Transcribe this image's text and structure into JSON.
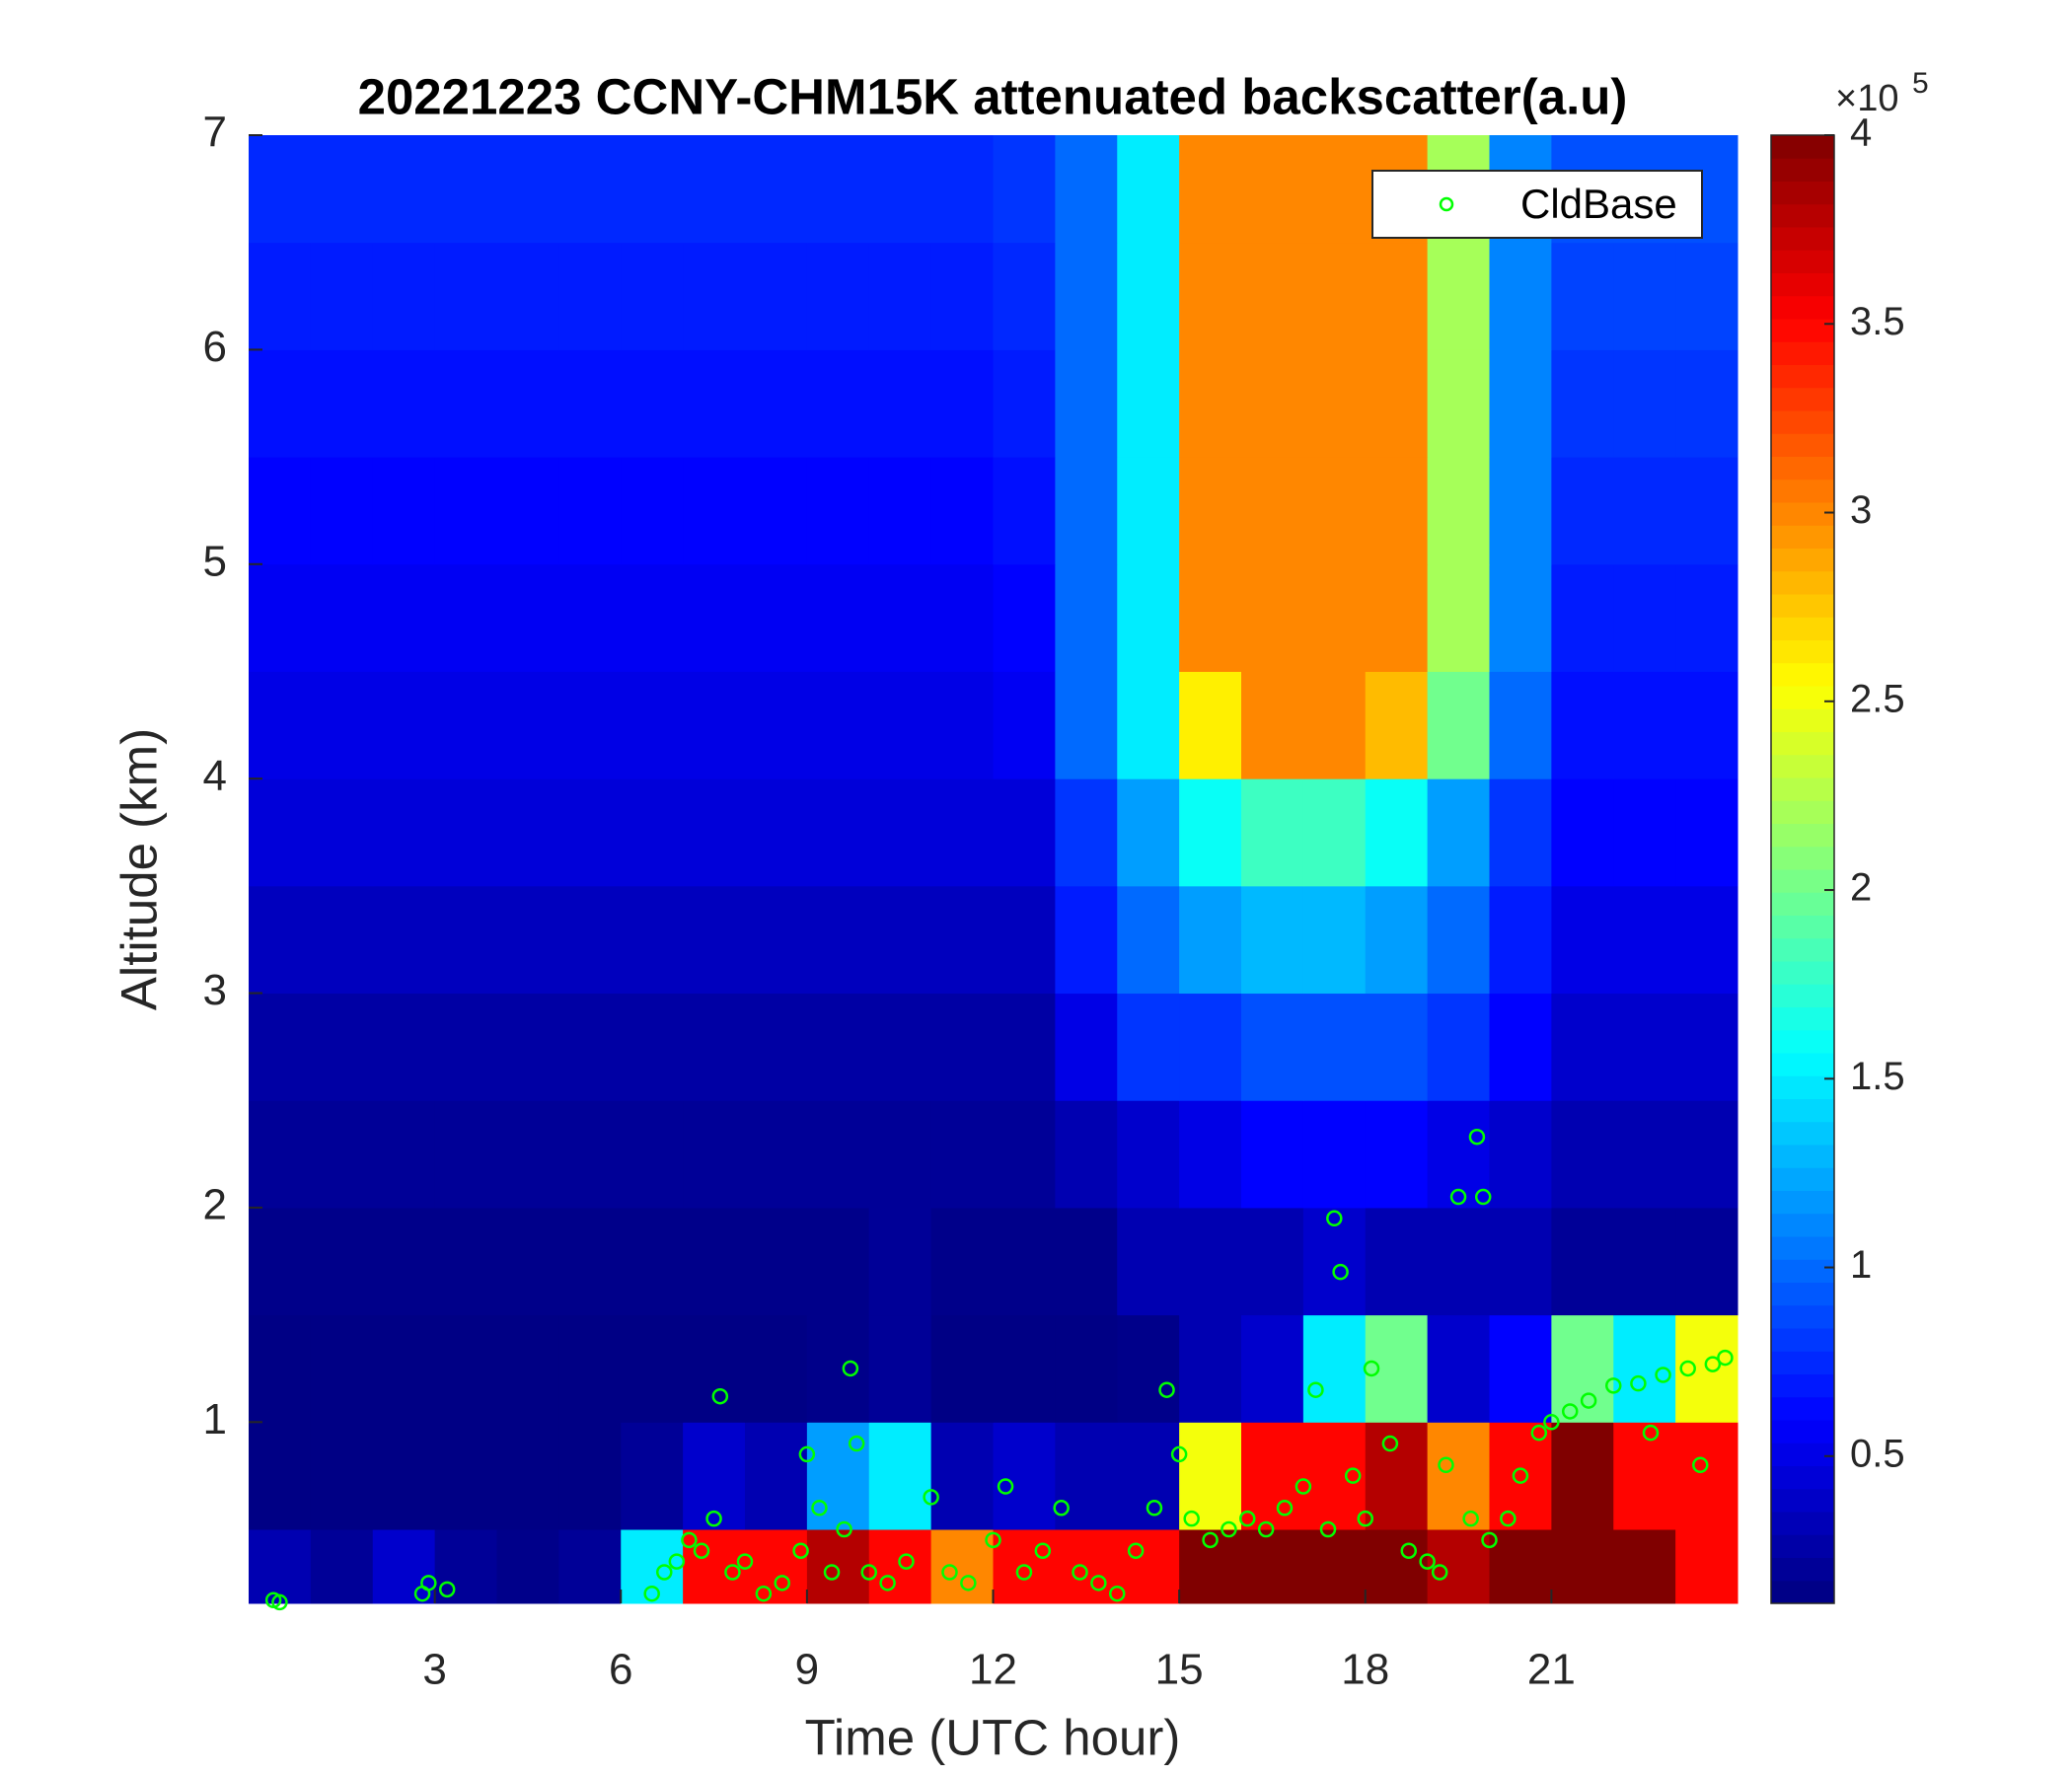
{
  "chart_data": {
    "type": "heatmap",
    "title": "20221223 CCNY-CHM15K attenuated backscatter(a.u)",
    "x_label": "Time (UTC hour)",
    "y_label": "Altitude (km)",
    "xlim": [
      0,
      24
    ],
    "xticks": [
      3,
      6,
      9,
      12,
      15,
      18,
      21
    ],
    "ylim": [
      0.155,
      7
    ],
    "yticks": [
      1,
      2,
      3,
      4,
      5,
      6,
      7
    ],
    "x_edges": [
      0,
      1,
      2,
      3,
      4,
      5,
      6,
      7,
      8,
      9,
      10,
      11,
      12,
      13,
      14,
      15,
      16,
      17,
      18,
      19,
      20,
      21,
      22,
      23,
      24
    ],
    "y_edges": [
      0.155,
      0.5,
      1,
      1.5,
      2,
      2.5,
      3,
      3.5,
      4,
      4.5,
      5,
      5.5,
      6,
      6.5,
      7
    ],
    "z": [
      [
        0.3,
        0.2,
        0.4,
        0.2,
        0.15,
        0.2,
        1.5,
        3.5,
        3.5,
        3.8,
        3.5,
        3,
        3.5,
        3.5,
        3.5,
        4,
        4,
        4,
        4,
        3.8,
        4,
        4,
        4,
        3.5
      ],
      [
        0.13,
        0.13,
        0.13,
        0.13,
        0.13,
        0.13,
        0.2,
        0.4,
        0.3,
        1.2,
        1.5,
        0.3,
        0.4,
        0.3,
        0.3,
        2.5,
        3.5,
        3.5,
        3.8,
        3,
        3.5,
        4,
        3.5,
        3.5
      ],
      [
        0.13,
        0.13,
        0.13,
        0.13,
        0.13,
        0.13,
        0.13,
        0.13,
        0.13,
        0.15,
        0.2,
        0.13,
        0.13,
        0.13,
        0.15,
        0.3,
        0.4,
        1.5,
        2,
        0.4,
        0.6,
        2,
        1.5,
        2.5
      ],
      [
        0.15,
        0.15,
        0.15,
        0.15,
        0.15,
        0.15,
        0.15,
        0.15,
        0.15,
        0.15,
        0.2,
        0.15,
        0.15,
        0.15,
        0.3,
        0.3,
        0.3,
        0.4,
        0.3,
        0.3,
        0.3,
        0.2,
        0.2,
        0.2
      ],
      [
        0.2,
        0.2,
        0.2,
        0.2,
        0.2,
        0.2,
        0.2,
        0.2,
        0.2,
        0.2,
        0.2,
        0.2,
        0.2,
        0.3,
        0.4,
        0.5,
        0.6,
        0.6,
        0.6,
        0.5,
        0.4,
        0.3,
        0.3,
        0.3
      ],
      [
        0.25,
        0.25,
        0.25,
        0.25,
        0.25,
        0.25,
        0.25,
        0.25,
        0.25,
        0.25,
        0.25,
        0.25,
        0.25,
        0.5,
        0.8,
        0.8,
        0.9,
        0.9,
        0.9,
        0.8,
        0.6,
        0.4,
        0.4,
        0.4
      ],
      [
        0.35,
        0.35,
        0.35,
        0.35,
        0.35,
        0.35,
        0.35,
        0.35,
        0.35,
        0.35,
        0.35,
        0.35,
        0.35,
        0.7,
        1.0,
        1.2,
        1.3,
        1.3,
        1.2,
        1.0,
        0.7,
        0.5,
        0.5,
        0.5
      ],
      [
        0.45,
        0.45,
        0.45,
        0.45,
        0.45,
        0.45,
        0.45,
        0.45,
        0.45,
        0.45,
        0.45,
        0.45,
        0.45,
        0.8,
        1.2,
        1.6,
        1.8,
        1.8,
        1.6,
        1.2,
        0.8,
        0.6,
        0.6,
        0.6
      ],
      [
        0.5,
        0.5,
        0.5,
        0.5,
        0.5,
        0.5,
        0.5,
        0.5,
        0.5,
        0.5,
        0.5,
        0.5,
        0.55,
        1.0,
        1.5,
        2.6,
        3.0,
        3.0,
        2.8,
        2.0,
        1.0,
        0.65,
        0.65,
        0.65
      ],
      [
        0.55,
        0.55,
        0.55,
        0.55,
        0.55,
        0.55,
        0.55,
        0.55,
        0.55,
        0.55,
        0.55,
        0.55,
        0.6,
        1.0,
        1.5,
        3.0,
        3.0,
        3.0,
        3.0,
        2.2,
        1.1,
        0.7,
        0.7,
        0.7
      ],
      [
        0.6,
        0.6,
        0.6,
        0.6,
        0.6,
        0.6,
        0.6,
        0.6,
        0.6,
        0.6,
        0.6,
        0.6,
        0.65,
        1.0,
        1.5,
        3.0,
        3.0,
        3.0,
        3.0,
        2.2,
        1.1,
        0.75,
        0.75,
        0.75
      ],
      [
        0.65,
        0.65,
        0.65,
        0.65,
        0.65,
        0.65,
        0.65,
        0.65,
        0.65,
        0.65,
        0.65,
        0.65,
        0.7,
        1.0,
        1.5,
        3.0,
        3.0,
        3.0,
        3.0,
        2.2,
        1.1,
        0.8,
        0.8,
        0.8
      ],
      [
        0.7,
        0.7,
        0.7,
        0.7,
        0.7,
        0.7,
        0.7,
        0.7,
        0.7,
        0.7,
        0.7,
        0.7,
        0.75,
        1.0,
        1.5,
        3.0,
        3.0,
        3.0,
        3.0,
        2.2,
        1.1,
        0.85,
        0.85,
        0.85
      ],
      [
        0.75,
        0.75,
        0.75,
        0.75,
        0.75,
        0.75,
        0.75,
        0.75,
        0.75,
        0.75,
        0.75,
        0.75,
        0.8,
        1.0,
        1.5,
        3.0,
        3.0,
        3.0,
        3.0,
        2.2,
        1.1,
        0.9,
        0.9,
        0.9
      ]
    ],
    "clim": [
      0.11,
      4
    ],
    "colorbar_ticks": [
      0.5,
      1,
      1.5,
      2,
      2.5,
      3,
      3.5,
      4
    ],
    "colorbar_multiplier": "×10",
    "colorbar_exponent": "5",
    "colormap": "jet",
    "legend_position": "upper right",
    "series": [
      {
        "name": "CldBase",
        "color": "#00ff00",
        "x": [
          0.4,
          0.5,
          2.8,
          2.9,
          3.2,
          6.5,
          6.7,
          6.9,
          7.1,
          7.3,
          7.5,
          7.6,
          7.8,
          8.0,
          8.3,
          8.6,
          8.9,
          9.0,
          9.2,
          9.4,
          9.6,
          9.7,
          9.8,
          10.0,
          10.3,
          10.6,
          11.0,
          11.3,
          11.6,
          12.0,
          12.2,
          12.5,
          12.8,
          13.1,
          13.4,
          13.7,
          14.0,
          14.3,
          14.6,
          14.8,
          15.0,
          15.2,
          15.5,
          15.8,
          16.1,
          16.4,
          16.7,
          17.0,
          17.2,
          17.4,
          17.5,
          17.6,
          17.8,
          18.0,
          18.1,
          18.4,
          18.7,
          19.0,
          19.2,
          19.3,
          19.5,
          19.8,
          19.9,
          19.7,
          20.0,
          20.3,
          20.5,
          20.8,
          21.0,
          21.3,
          21.6,
          22.0,
          22.4,
          22.8,
          23.2,
          23.6,
          23.8,
          22.6,
          23.4
        ],
        "values": [
          0.17,
          0.16,
          0.2,
          0.25,
          0.22,
          0.2,
          0.3,
          0.35,
          0.45,
          0.4,
          0.55,
          1.12,
          0.3,
          0.35,
          0.2,
          0.25,
          0.4,
          0.85,
          0.6,
          0.3,
          0.5,
          1.25,
          0.9,
          0.3,
          0.25,
          0.35,
          0.65,
          0.3,
          0.25,
          0.45,
          0.7,
          0.3,
          0.4,
          0.6,
          0.3,
          0.25,
          0.2,
          0.4,
          0.6,
          1.15,
          0.85,
          0.55,
          0.45,
          0.5,
          0.55,
          0.5,
          0.6,
          0.7,
          1.15,
          0.5,
          1.95,
          1.7,
          0.75,
          0.55,
          1.25,
          0.9,
          0.4,
          0.35,
          0.3,
          0.8,
          2.05,
          2.33,
          2.05,
          0.55,
          0.45,
          0.55,
          0.75,
          0.95,
          1.0,
          1.05,
          1.1,
          1.17,
          1.18,
          1.22,
          1.25,
          1.27,
          1.3,
          0.95,
          0.8
        ]
      }
    ]
  }
}
